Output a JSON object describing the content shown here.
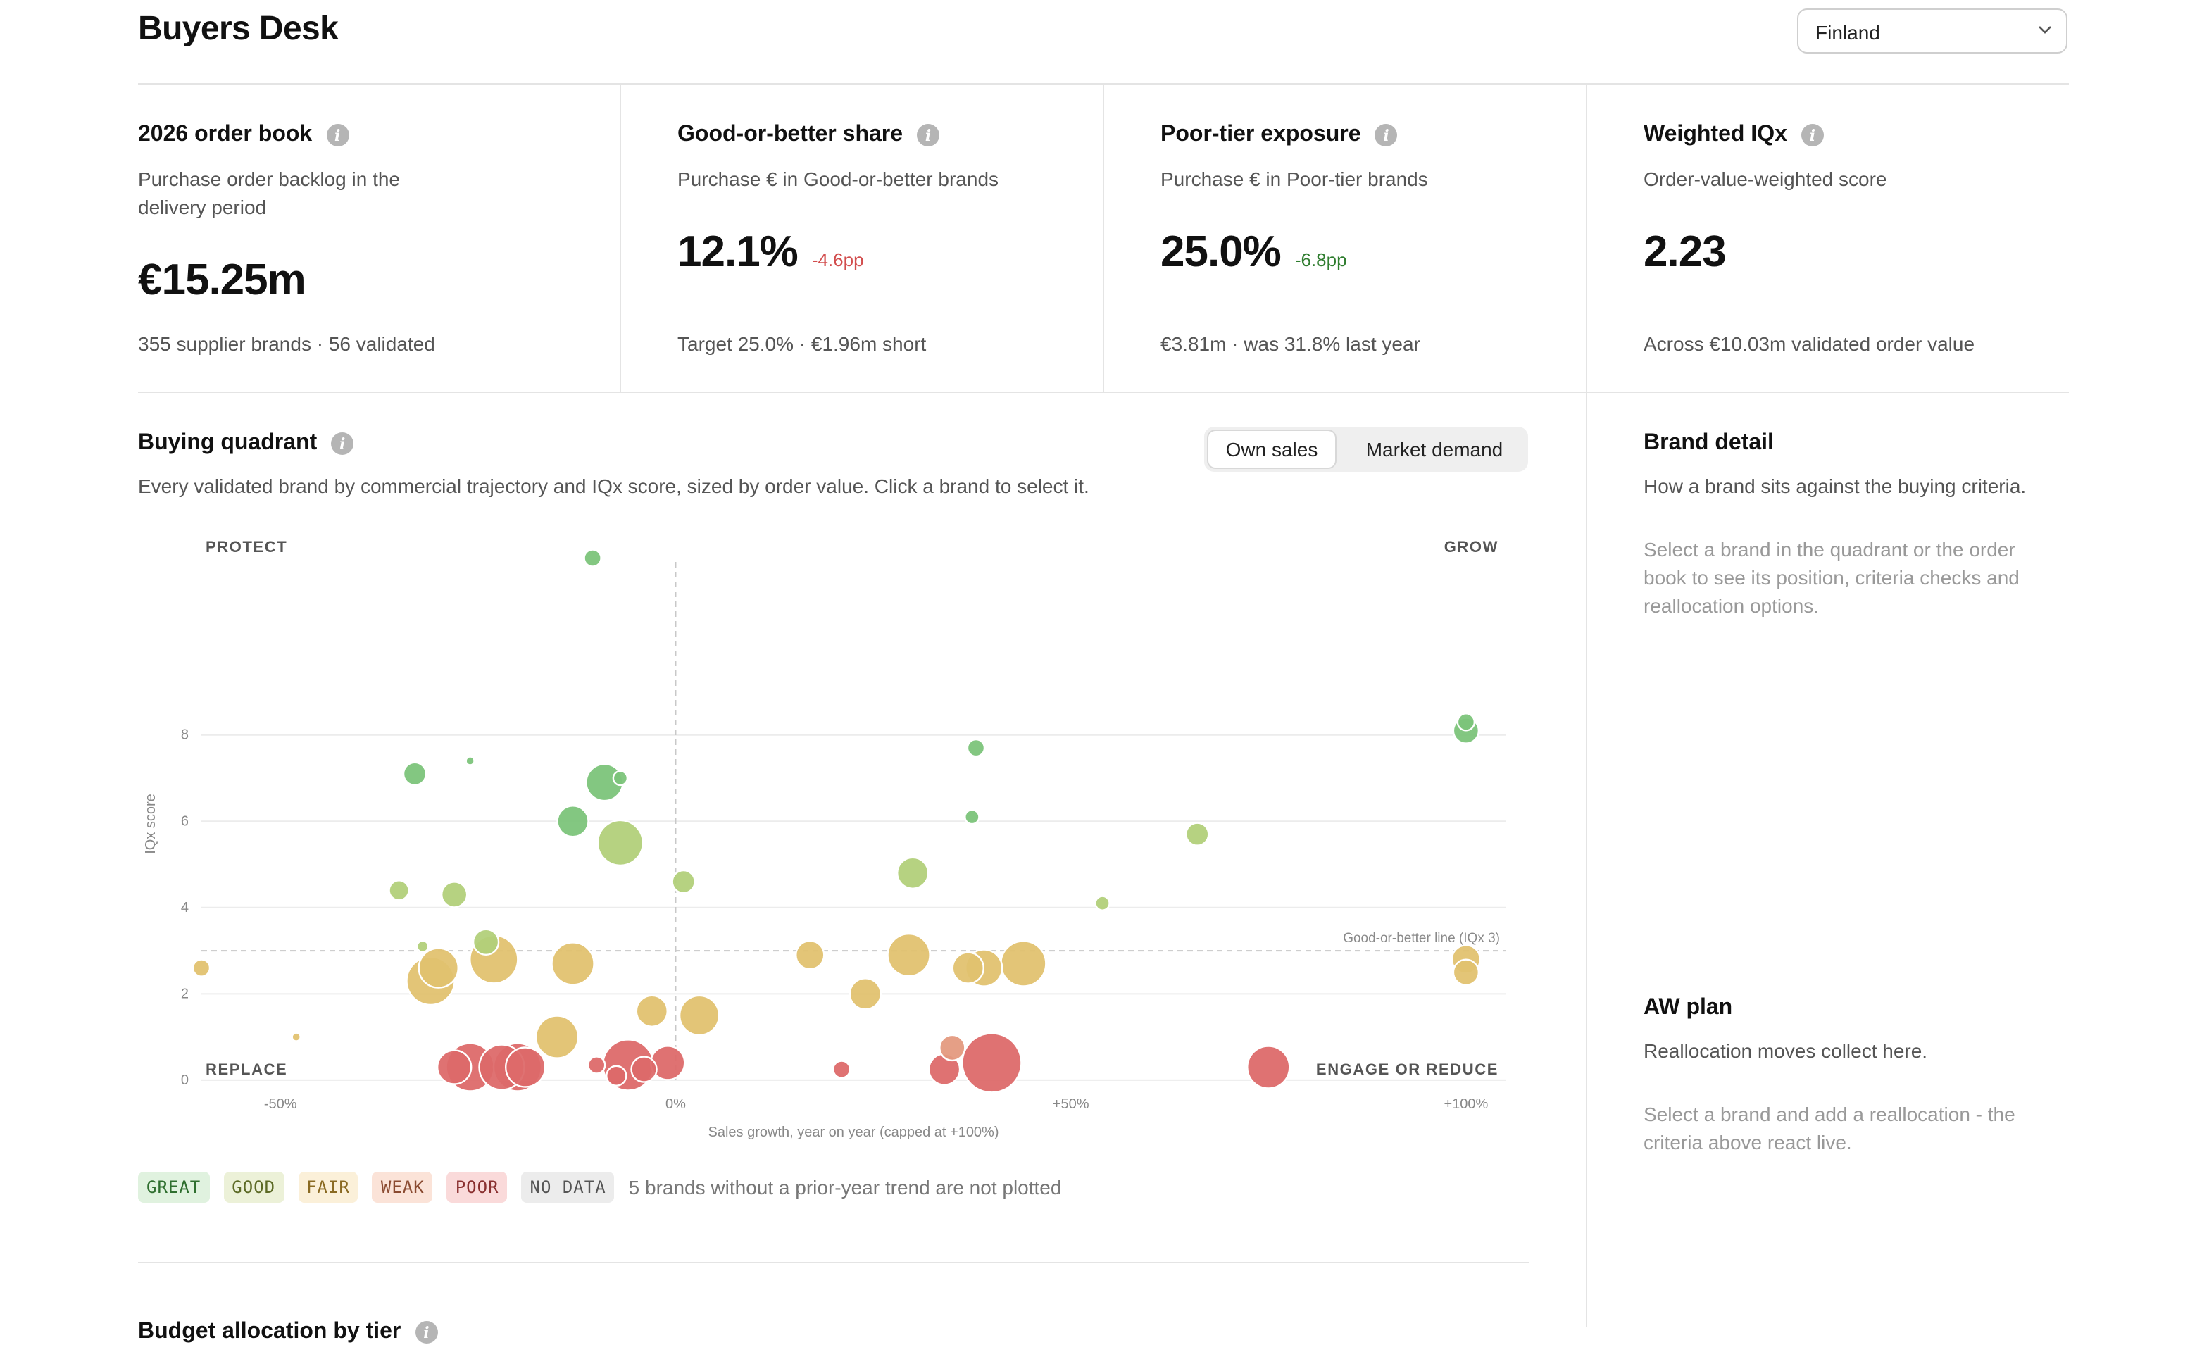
{
  "header": {
    "title": "Buyers Desk",
    "country": "Finland"
  },
  "kpis": [
    {
      "title": "2026 order book",
      "subtitle": "Purchase order backlog in the delivery period",
      "value": "€15.25m",
      "delta": "",
      "footer": "355 supplier brands · 56 validated"
    },
    {
      "title": "Good-or-better share",
      "subtitle": "Purchase € in Good-or-better brands",
      "value": "12.1%",
      "delta": "-4.6pp",
      "footer": "Target 25.0% · €1.96m short"
    },
    {
      "title": "Poor-tier exposure",
      "subtitle": "Purchase € in Poor-tier brands",
      "value": "25.0%",
      "delta": "-6.8pp",
      "footer": "€3.81m · was 31.8% last year"
    },
    {
      "title": "Weighted IQx",
      "subtitle": "Order-value-weighted score",
      "value": "2.23",
      "delta": "",
      "footer": "Across €10.03m validated order value"
    }
  ],
  "quadrant": {
    "title": "Buying quadrant",
    "subtitle": "Every validated brand by commercial trajectory and IQx score, sized by order value. Click a brand to select it.",
    "toggle": {
      "options": [
        "Own sales",
        "Market demand"
      ],
      "selected": "Own sales"
    },
    "legend": {
      "tiers": [
        {
          "label": "GREAT",
          "bg": "#e0f2df",
          "fg": "#2f6f2f"
        },
        {
          "label": "GOOD",
          "bg": "#ecf1d8",
          "fg": "#5c6a25"
        },
        {
          "label": "FAIR",
          "bg": "#fbf0d9",
          "fg": "#8a6a22"
        },
        {
          "label": "WEAK",
          "bg": "#fbe3d8",
          "fg": "#8a4a30"
        },
        {
          "label": "POOR",
          "bg": "#fadada",
          "fg": "#8a3030"
        },
        {
          "label": "NO DATA",
          "bg": "#ececec",
          "fg": "#555555"
        }
      ],
      "note": "5 brands without a prior-year trend are not plotted"
    }
  },
  "chart_data": {
    "type": "scatter",
    "xlabel": "Sales growth, year on year (capped at +100%)",
    "ylabel": "IQx score",
    "x_ticks": [
      {
        "value": -50,
        "label": "-50%"
      },
      {
        "value": 0,
        "label": "0%"
      },
      {
        "value": 50,
        "label": "+50%"
      },
      {
        "value": 100,
        "label": "+100%"
      }
    ],
    "y_ticks": [
      0,
      2,
      4,
      6,
      8
    ],
    "xlim": [
      -60,
      105
    ],
    "ylim": [
      -0.1,
      12.5
    ],
    "threshold": {
      "y": 3,
      "label": "Good-or-better line (IQx 3)"
    },
    "quadrant_labels": {
      "top_left": "PROTECT",
      "top_right": "GROW",
      "bottom_left": "REPLACE",
      "bottom_right": "ENGAGE OR REDUCE"
    },
    "tier_colors": {
      "great": "#7cc47a",
      "good": "#b2d07a",
      "fair": "#e2c270",
      "poor": "#dd6a6a",
      "weak": "#e49a80"
    },
    "points": [
      {
        "x": -10.5,
        "y": 12.1,
        "r": 6,
        "tier": "great"
      },
      {
        "x": 100,
        "y": 8.3,
        "r": 6,
        "tier": "great"
      },
      {
        "x": 100,
        "y": 8.1,
        "r": 9,
        "tier": "great"
      },
      {
        "x": 38,
        "y": 7.7,
        "r": 6,
        "tier": "great"
      },
      {
        "x": -33,
        "y": 7.1,
        "r": 8,
        "tier": "great"
      },
      {
        "x": -26,
        "y": 7.4,
        "r": 3,
        "tier": "great"
      },
      {
        "x": -9,
        "y": 6.9,
        "r": 13,
        "tier": "great"
      },
      {
        "x": -7,
        "y": 7.0,
        "r": 5,
        "tier": "great"
      },
      {
        "x": -13,
        "y": 6.0,
        "r": 11,
        "tier": "great"
      },
      {
        "x": 37.5,
        "y": 6.1,
        "r": 5,
        "tier": "great"
      },
      {
        "x": -7,
        "y": 5.5,
        "r": 16,
        "tier": "good"
      },
      {
        "x": 1,
        "y": 4.6,
        "r": 8,
        "tier": "good"
      },
      {
        "x": 30,
        "y": 4.8,
        "r": 11,
        "tier": "good"
      },
      {
        "x": 66,
        "y": 5.7,
        "r": 8,
        "tier": "good"
      },
      {
        "x": -35,
        "y": 4.4,
        "r": 7,
        "tier": "good"
      },
      {
        "x": -28,
        "y": 4.3,
        "r": 9,
        "tier": "good"
      },
      {
        "x": 54,
        "y": 4.1,
        "r": 5,
        "tier": "good"
      },
      {
        "x": -32,
        "y": 3.1,
        "r": 4,
        "tier": "good"
      },
      {
        "x": -24,
        "y": 3.2,
        "r": 9,
        "tier": "good"
      },
      {
        "x": -60,
        "y": 2.6,
        "r": 6,
        "tier": "fair"
      },
      {
        "x": -31,
        "y": 2.3,
        "r": 17,
        "tier": "fair"
      },
      {
        "x": -30,
        "y": 2.6,
        "r": 14,
        "tier": "fair"
      },
      {
        "x": -23,
        "y": 2.8,
        "r": 17,
        "tier": "fair"
      },
      {
        "x": -13,
        "y": 2.7,
        "r": 15,
        "tier": "fair"
      },
      {
        "x": 17,
        "y": 2.9,
        "r": 10,
        "tier": "fair"
      },
      {
        "x": 24,
        "y": 2.0,
        "r": 11,
        "tier": "fair"
      },
      {
        "x": 29.5,
        "y": 2.9,
        "r": 15,
        "tier": "fair"
      },
      {
        "x": 37,
        "y": 2.6,
        "r": 11,
        "tier": "fair"
      },
      {
        "x": 39,
        "y": 2.6,
        "r": 13,
        "tier": "fair"
      },
      {
        "x": 44,
        "y": 2.7,
        "r": 16,
        "tier": "fair"
      },
      {
        "x": 100,
        "y": 2.8,
        "r": 10,
        "tier": "fair"
      },
      {
        "x": 100,
        "y": 2.5,
        "r": 9,
        "tier": "fair"
      },
      {
        "x": -3,
        "y": 1.6,
        "r": 11,
        "tier": "fair"
      },
      {
        "x": 3,
        "y": 1.5,
        "r": 14,
        "tier": "fair"
      },
      {
        "x": -15,
        "y": 1.0,
        "r": 15,
        "tier": "fair"
      },
      {
        "x": -48,
        "y": 1.0,
        "r": 3,
        "tier": "fair"
      },
      {
        "x": -28,
        "y": 0.3,
        "r": 12,
        "tier": "poor"
      },
      {
        "x": -26,
        "y": 0.3,
        "r": 17,
        "tier": "poor"
      },
      {
        "x": -22,
        "y": 0.3,
        "r": 16,
        "tier": "poor"
      },
      {
        "x": -20,
        "y": 0.3,
        "r": 17,
        "tier": "poor"
      },
      {
        "x": -19,
        "y": 0.3,
        "r": 14,
        "tier": "poor"
      },
      {
        "x": -10,
        "y": 0.35,
        "r": 6,
        "tier": "poor"
      },
      {
        "x": -6,
        "y": 0.35,
        "r": 18,
        "tier": "poor"
      },
      {
        "x": -7.5,
        "y": 0.1,
        "r": 7,
        "tier": "poor"
      },
      {
        "x": -4,
        "y": 0.25,
        "r": 9,
        "tier": "poor"
      },
      {
        "x": -1,
        "y": 0.4,
        "r": 12,
        "tier": "poor"
      },
      {
        "x": 21,
        "y": 0.25,
        "r": 6,
        "tier": "poor"
      },
      {
        "x": 34,
        "y": 0.25,
        "r": 11,
        "tier": "poor"
      },
      {
        "x": 35,
        "y": 0.75,
        "r": 9,
        "tier": "weak"
      },
      {
        "x": 40,
        "y": 0.4,
        "r": 21,
        "tier": "poor"
      },
      {
        "x": 75,
        "y": 0.3,
        "r": 15,
        "tier": "poor"
      }
    ]
  },
  "brand_detail": {
    "title": "Brand detail",
    "subtitle": "How a brand sits against the buying criteria.",
    "hint": "Select a brand in the quadrant or the order book to see its position, criteria checks and reallocation options."
  },
  "aw_plan": {
    "title": "AW plan",
    "subtitle": "Reallocation moves collect here.",
    "hint": "Select a brand and add a reallocation - the criteria above react live."
  },
  "budget": {
    "title": "Budget allocation by tier"
  }
}
